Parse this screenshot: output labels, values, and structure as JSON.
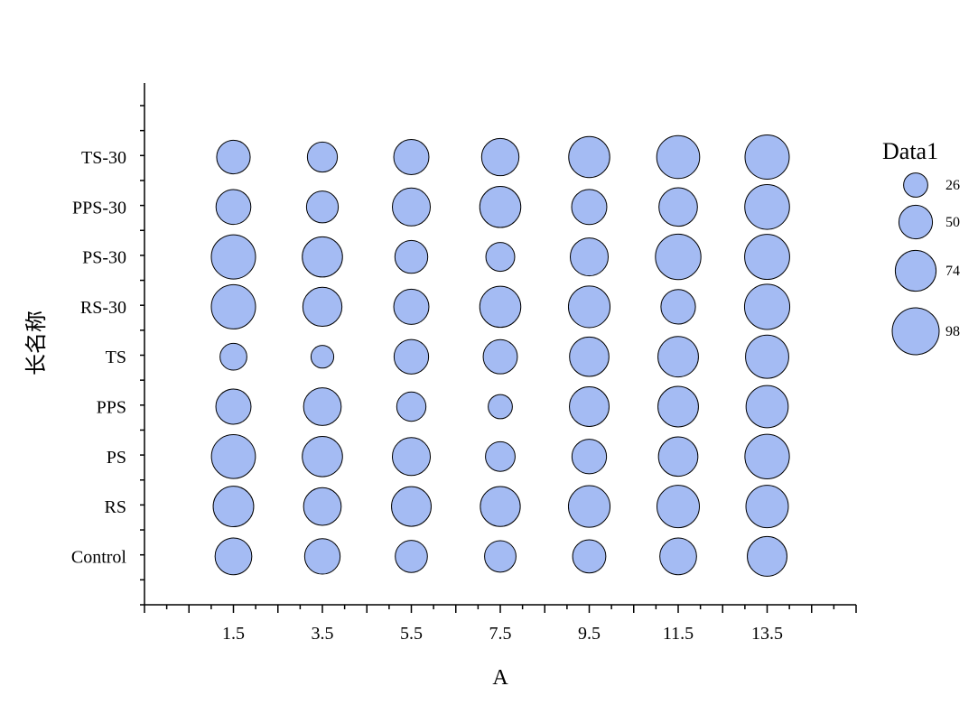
{
  "colors": {
    "bubble_fill": "#a4bbf3",
    "bubble_stroke": "#000000",
    "axis": "#000000"
  },
  "chart_data": {
    "type": "scatter",
    "subtype": "bubble",
    "title": "",
    "xlabel": "A",
    "ylabel": "长名称",
    "x_categories": [
      "1.5",
      "3.5",
      "5.5",
      "7.5",
      "9.5",
      "11.5",
      "13.5"
    ],
    "x_values": [
      1.5,
      3.5,
      5.5,
      7.5,
      9.5,
      11.5,
      13.5
    ],
    "xlim": [
      -0.5,
      15.5
    ],
    "y_categories": [
      "Control",
      "RS",
      "PS",
      "PPS",
      "TS",
      "RS-30",
      "PS-30",
      "PPS-30",
      "TS-30"
    ],
    "size_series_name": "Data1",
    "sizes": [
      [
        60,
        56,
        46,
        44,
        49,
        60,
        70
      ],
      [
        73,
        63,
        70,
        71,
        77,
        80,
        80
      ],
      [
        86,
        72,
        64,
        39,
        53,
        69,
        88
      ],
      [
        55,
        63,
        38,
        26,
        70,
        73,
        79
      ],
      [
        32,
        23,
        53,
        52,
        69,
        73,
        83
      ],
      [
        87,
        68,
        55,
        75,
        77,
        53,
        91
      ],
      [
        87,
        72,
        48,
        37,
        64,
        92,
        90
      ],
      [
        54,
        45,
        64,
        75,
        55,
        66,
        89
      ],
      [
        50,
        40,
        55,
        62,
        75,
        82,
        87
      ]
    ],
    "legend": {
      "title": "Data1",
      "position": "right",
      "entries": [
        26,
        50,
        74,
        98
      ]
    },
    "legend_labels": [
      "26",
      "50",
      "74",
      "98"
    ],
    "grid": false
  }
}
